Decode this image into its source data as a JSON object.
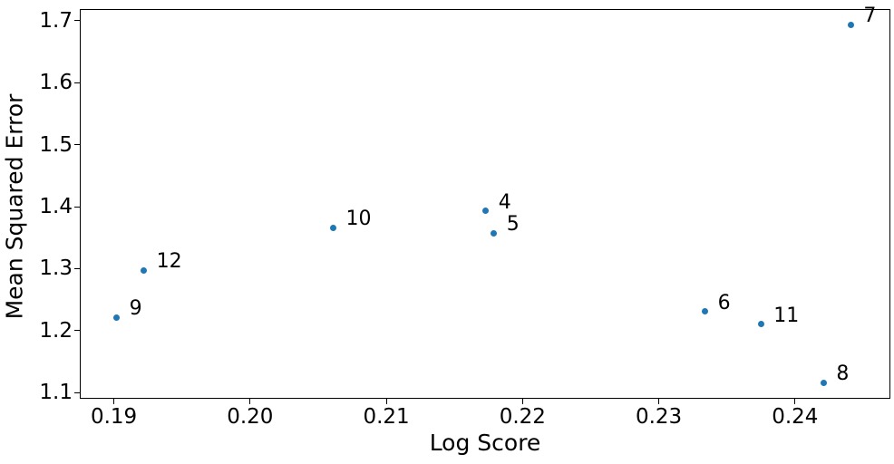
{
  "chart_data": {
    "type": "scatter",
    "title": "",
    "xlabel": "Log Score",
    "ylabel": "Mean Squared Error",
    "xlim": [
      0.1875,
      0.247
    ],
    "ylim": [
      1.09,
      1.719
    ],
    "grid": false,
    "legend": false,
    "marker_color": "#1f77b4",
    "x_ticks": [
      {
        "value": 0.19,
        "label": "0.19"
      },
      {
        "value": 0.2,
        "label": "0.20"
      },
      {
        "value": 0.21,
        "label": "0.21"
      },
      {
        "value": 0.22,
        "label": "0.22"
      },
      {
        "value": 0.23,
        "label": "0.23"
      },
      {
        "value": 0.24,
        "label": "0.24"
      }
    ],
    "y_ticks": [
      {
        "value": 1.1,
        "label": "1.1"
      },
      {
        "value": 1.2,
        "label": "1.2"
      },
      {
        "value": 1.3,
        "label": "1.3"
      },
      {
        "value": 1.4,
        "label": "1.4"
      },
      {
        "value": 1.5,
        "label": "1.5"
      },
      {
        "value": 1.6,
        "label": "1.6"
      },
      {
        "value": 1.7,
        "label": "1.7"
      }
    ],
    "points": [
      {
        "label": "4",
        "x": 0.2173,
        "y": 1.393
      },
      {
        "label": "5",
        "x": 0.2179,
        "y": 1.357
      },
      {
        "label": "6",
        "x": 0.2334,
        "y": 1.231
      },
      {
        "label": "7",
        "x": 0.2441,
        "y": 1.694
      },
      {
        "label": "8",
        "x": 0.2421,
        "y": 1.116
      },
      {
        "label": "9",
        "x": 0.1902,
        "y": 1.221
      },
      {
        "label": "10",
        "x": 0.2061,
        "y": 1.366
      },
      {
        "label": "11",
        "x": 0.2375,
        "y": 1.21
      },
      {
        "label": "12",
        "x": 0.1922,
        "y": 1.297
      }
    ]
  }
}
